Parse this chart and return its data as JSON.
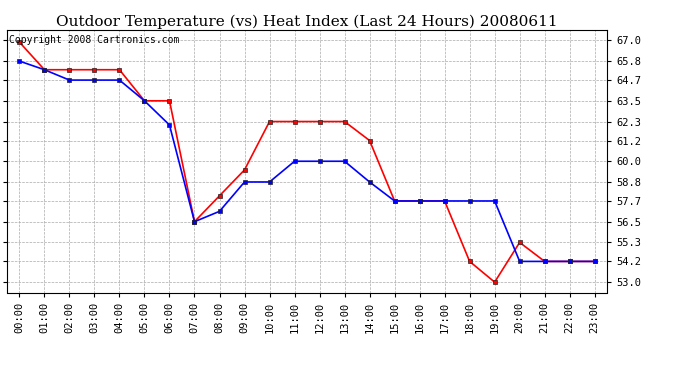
{
  "title": "Outdoor Temperature (vs) Heat Index (Last 24 Hours) 20080611",
  "copyright_text": "Copyright 2008 Cartronics.com",
  "x_labels": [
    "00:00",
    "01:00",
    "02:00",
    "03:00",
    "04:00",
    "05:00",
    "06:00",
    "07:00",
    "08:00",
    "09:00",
    "10:00",
    "11:00",
    "12:00",
    "13:00",
    "14:00",
    "15:00",
    "16:00",
    "17:00",
    "18:00",
    "19:00",
    "20:00",
    "21:00",
    "22:00",
    "23:00"
  ],
  "y_ticks": [
    53.0,
    54.2,
    55.3,
    56.5,
    57.7,
    58.8,
    60.0,
    61.2,
    62.3,
    63.5,
    64.7,
    65.8,
    67.0
  ],
  "ylim": [
    52.4,
    67.6
  ],
  "red_data": [
    66.9,
    65.3,
    65.3,
    65.3,
    65.3,
    63.5,
    63.5,
    56.5,
    58.0,
    59.5,
    62.3,
    62.3,
    62.3,
    62.3,
    61.2,
    57.7,
    57.7,
    57.7,
    54.2,
    53.0,
    55.3,
    54.2,
    54.2,
    54.2
  ],
  "blue_data": [
    65.8,
    65.3,
    64.7,
    64.7,
    64.7,
    63.5,
    62.1,
    56.5,
    57.1,
    58.8,
    58.8,
    60.0,
    60.0,
    60.0,
    58.8,
    57.7,
    57.7,
    57.7,
    57.7,
    57.7,
    54.2,
    54.2,
    54.2,
    54.2
  ],
  "red_color": "#FF0000",
  "blue_color": "#0000FF",
  "bg_color": "#FFFFFF",
  "grid_color": "#AAAAAA",
  "title_fontsize": 11,
  "copyright_fontsize": 7,
  "tick_fontsize": 7.5,
  "ytick_fontsize": 7.5
}
